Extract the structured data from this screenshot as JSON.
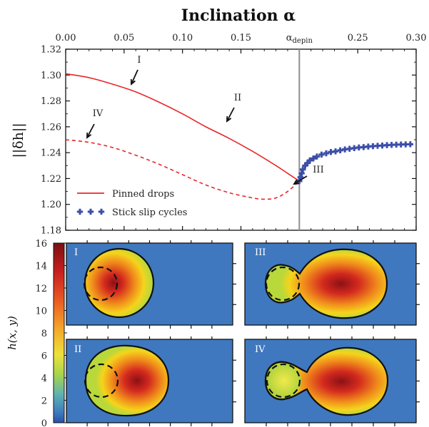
{
  "chart_data": {
    "type": "line",
    "title": "Inclination α",
    "xlabel": "Inclination α",
    "ylabel": "||δh||",
    "xlim": [
      0.0,
      0.3
    ],
    "ylim": [
      1.18,
      1.32
    ],
    "x_ticks": [
      "0.00",
      "0.05",
      "0.10",
      "0.15",
      "α_depin",
      "0.25",
      "0.30"
    ],
    "y_ticks": [
      "1.18",
      "1.20",
      "1.22",
      "1.24",
      "1.26",
      "1.28",
      "1.30",
      "1.32"
    ],
    "depinning_alpha": 0.2,
    "series": [
      {
        "name": "Pinned drops",
        "style": "solid",
        "color": "#e8272b",
        "x": [
          0.0,
          0.02,
          0.04,
          0.06,
          0.08,
          0.1,
          0.12,
          0.14,
          0.16,
          0.18,
          0.19,
          0.2
        ],
        "y": [
          1.301,
          1.298,
          1.293,
          1.287,
          1.279,
          1.27,
          1.26,
          1.251,
          1.241,
          1.23,
          1.224,
          1.218
        ]
      },
      {
        "name": "",
        "style": "dashed",
        "color": "#e8272b",
        "x": [
          0.0,
          0.02,
          0.04,
          0.06,
          0.08,
          0.1,
          0.12,
          0.14,
          0.16,
          0.17,
          0.18,
          0.19,
          0.2
        ],
        "y": [
          1.25,
          1.248,
          1.244,
          1.238,
          1.231,
          1.223,
          1.215,
          1.209,
          1.205,
          1.204,
          1.205,
          1.21,
          1.218
        ]
      },
      {
        "name": "Stick slip cycles",
        "style": "markers",
        "color": "#3b4ea8",
        "x": [
          0.2,
          0.201,
          0.202,
          0.203,
          0.205,
          0.207,
          0.209,
          0.212,
          0.215,
          0.219,
          0.223,
          0.227,
          0.231,
          0.235,
          0.239,
          0.243,
          0.247,
          0.251,
          0.255,
          0.259,
          0.263,
          0.267,
          0.271,
          0.275,
          0.279,
          0.283,
          0.287,
          0.291,
          0.295
        ],
        "y": [
          1.218,
          1.221,
          1.224,
          1.227,
          1.23,
          1.232,
          1.234,
          1.2355,
          1.237,
          1.2385,
          1.2395,
          1.2405,
          1.241,
          1.2418,
          1.2425,
          1.243,
          1.2435,
          1.244,
          1.2443,
          1.2447,
          1.245,
          1.2453,
          1.2455,
          1.2458,
          1.246,
          1.2462,
          1.2463,
          1.2464,
          1.2465
        ]
      }
    ],
    "annotations": [
      {
        "label": "I",
        "x": 0.055
      },
      {
        "label": "II",
        "x": 0.14
      },
      {
        "label": "III",
        "x": 0.2
      },
      {
        "label": "IV",
        "x": 0.02
      }
    ],
    "legend_position": "lower-left",
    "colorbar": {
      "label": "h(x, y)",
      "ticks": [
        "0",
        "2",
        "4",
        "6",
        "8",
        "10",
        "12",
        "14",
        "16"
      ],
      "range": [
        0,
        16
      ]
    },
    "panels": [
      "I",
      "II",
      "III",
      "IV"
    ]
  }
}
